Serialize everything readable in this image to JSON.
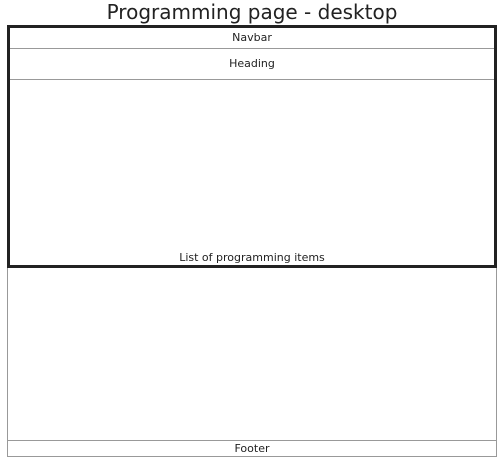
{
  "title": "Programming page - desktop",
  "navbar": "Navbar",
  "heading": "Heading",
  "list": "List of programming items",
  "footer": "Footer"
}
